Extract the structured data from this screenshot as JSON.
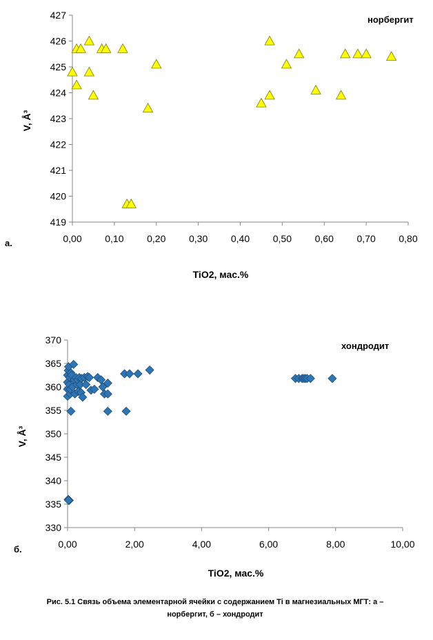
{
  "caption": {
    "line1": "Рис. 5.1 Связь объема элементарной  ячейки с содержанием Ti в магнезиальных  МГТ: а –",
    "line2": "норбергит,  б – хондродит"
  },
  "chart_data": [
    {
      "type": "scatter",
      "panel_label": "а.",
      "title": "норбергит",
      "xlabel": "TiO2, мас.%",
      "ylabel": "V, Å³",
      "xlim": [
        0,
        0.8
      ],
      "ylim": [
        419,
        427
      ],
      "xticks": [
        "0,00",
        "0,10",
        "0,20",
        "0,30",
        "0,40",
        "0,50",
        "0,60",
        "0,70",
        "0,80"
      ],
      "yticks": [
        "419",
        "420",
        "421",
        "422",
        "423",
        "424",
        "425",
        "426",
        "427"
      ],
      "marker": "triangle",
      "color": "#ffff00",
      "x": [
        0.0,
        0.01,
        0.01,
        0.02,
        0.04,
        0.04,
        0.05,
        0.07,
        0.08,
        0.12,
        0.13,
        0.14,
        0.18,
        0.2,
        0.45,
        0.47,
        0.47,
        0.51,
        0.54,
        0.58,
        0.64,
        0.65,
        0.68,
        0.7,
        0.76
      ],
      "y": [
        424.8,
        424.3,
        425.7,
        425.7,
        426.0,
        424.8,
        423.9,
        425.7,
        425.7,
        425.7,
        419.7,
        419.7,
        423.4,
        425.1,
        423.6,
        426.0,
        423.9,
        425.1,
        425.5,
        424.1,
        423.9,
        425.5,
        425.5,
        425.5,
        425.4
      ]
    },
    {
      "type": "scatter",
      "panel_label": "б.",
      "title": "хондродит",
      "xlabel": "TiO2, мас.%",
      "ylabel": "V, Å³",
      "xlim": [
        0,
        10
      ],
      "ylim": [
        330,
        370
      ],
      "xticks": [
        "0,00",
        "2,00",
        "4,00",
        "6,00",
        "8,00",
        "10,00"
      ],
      "yticks": [
        "330",
        "335",
        "340",
        "345",
        "350",
        "355",
        "360",
        "365",
        "370"
      ],
      "marker": "diamond",
      "color": "#2e75b6",
      "x": [
        0.0,
        0.0,
        0.0,
        0.0,
        0.02,
        0.03,
        0.05,
        0.06,
        0.08,
        0.08,
        0.1,
        0.12,
        0.15,
        0.18,
        0.2,
        0.22,
        0.25,
        0.28,
        0.3,
        0.32,
        0.35,
        0.38,
        0.4,
        0.42,
        0.45,
        0.5,
        0.55,
        0.6,
        0.65,
        0.7,
        0.8,
        0.9,
        1.0,
        1.05,
        1.1,
        1.2,
        1.2,
        1.2,
        1.7,
        1.75,
        1.85,
        2.1,
        2.45,
        0.1,
        0.05,
        0.02,
        0.03,
        6.8,
        6.9,
        7.0,
        7.05,
        7.1,
        7.15,
        7.25,
        7.9
      ],
      "y": [
        358.0,
        359.5,
        361.0,
        362.5,
        363.5,
        364.3,
        360.5,
        362.0,
        358.5,
        359.5,
        363.0,
        362.5,
        360.0,
        364.8,
        361.5,
        358.5,
        362.0,
        360.5,
        361.5,
        359.0,
        362.0,
        360.5,
        358.8,
        361.8,
        357.8,
        362.0,
        360.5,
        362.2,
        362.0,
        359.3,
        359.5,
        362.0,
        361.5,
        360.0,
        358.5,
        354.8,
        358.5,
        360.8,
        362.8,
        354.8,
        362.8,
        362.8,
        363.6,
        354.8,
        335.8,
        336.0,
        335.8,
        361.8,
        361.8,
        361.8,
        361.8,
        361.8,
        361.8,
        361.8,
        361.8
      ]
    }
  ]
}
